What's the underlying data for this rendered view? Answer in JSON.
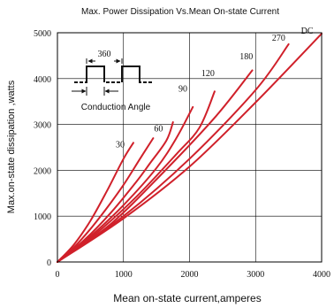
{
  "chart_data": {
    "type": "line",
    "title": "Max. Power Dissipation Vs.Mean On-state Current",
    "xlabel": "Mean on-state current,amperes",
    "ylabel": "Max.on-state dissipation ,watts",
    "xlim": [
      0,
      4000
    ],
    "ylim": [
      0,
      5000
    ],
    "xticks": [
      0,
      1000,
      2000,
      3000,
      4000
    ],
    "yticks": [
      0,
      1000,
      2000,
      3000,
      4000,
      5000
    ],
    "xtick_labels": [
      "0",
      "1000",
      "2000",
      "3000",
      "4000"
    ],
    "ytick_labels": [
      "0",
      "1000",
      "2000",
      "3000",
      "4000",
      "5000"
    ],
    "grid": true,
    "line_color": "#d0202a",
    "series": [
      {
        "name": "30",
        "points": [
          [
            0,
            0
          ],
          [
            250,
            380
          ],
          [
            500,
            900
          ],
          [
            750,
            1550
          ],
          [
            1000,
            2250
          ],
          [
            1150,
            2600
          ]
        ]
      },
      {
        "name": "60",
        "points": [
          [
            0,
            0
          ],
          [
            250,
            320
          ],
          [
            500,
            720
          ],
          [
            750,
            1180
          ],
          [
            1000,
            1680
          ],
          [
            1250,
            2250
          ],
          [
            1450,
            2700
          ]
        ]
      },
      {
        "name": "90",
        "points": [
          [
            0,
            0
          ],
          [
            400,
            470
          ],
          [
            800,
            1060
          ],
          [
            1200,
            1760
          ],
          [
            1400,
            2150
          ],
          [
            1650,
            2650
          ],
          [
            1750,
            3050
          ]
        ]
      },
      {
        "name": "120",
        "points": [
          [
            0,
            0
          ],
          [
            500,
            560
          ],
          [
            1000,
            1240
          ],
          [
            1500,
            2050
          ],
          [
            1800,
            2700
          ],
          [
            2050,
            3380
          ]
        ]
      },
      {
        "name": "180",
        "points": [
          [
            0,
            0
          ],
          [
            600,
            640
          ],
          [
            1200,
            1430
          ],
          [
            1800,
            2350
          ],
          [
            2150,
            2930
          ],
          [
            2380,
            3720
          ]
        ]
      },
      {
        "name": "270",
        "points": [
          [
            0,
            0
          ],
          [
            800,
            820
          ],
          [
            1600,
            1950
          ],
          [
            2400,
            3180
          ],
          [
            2950,
            4180
          ]
        ]
      },
      {
        "name": "DC",
        "points": [
          [
            0,
            0
          ],
          [
            1000,
            1000
          ],
          [
            2000,
            2250
          ],
          [
            3000,
            3750
          ],
          [
            3500,
            4750
          ]
        ]
      },
      {
        "name": "DC",
        "points": [
          [
            0,
            0
          ],
          [
            1000,
            950
          ],
          [
            2000,
            2080
          ],
          [
            3000,
            3480
          ],
          [
            4000,
            4980
          ]
        ]
      }
    ],
    "curve_labels": [
      {
        "text": "30",
        "x": 950,
        "y": 2500
      },
      {
        "text": "60",
        "x": 1530,
        "y": 2850
      },
      {
        "text": "90",
        "x": 1900,
        "y": 3720
      },
      {
        "text": "120",
        "x": 2280,
        "y": 4050
      },
      {
        "text": "180",
        "x": 2860,
        "y": 4420
      },
      {
        "text": "270",
        "x": 3350,
        "y": 4830
      },
      {
        "text": "DC",
        "x": 3780,
        "y": 4980
      }
    ],
    "inset": {
      "angle_label": "360",
      "caption": "Conduction Angle"
    }
  }
}
